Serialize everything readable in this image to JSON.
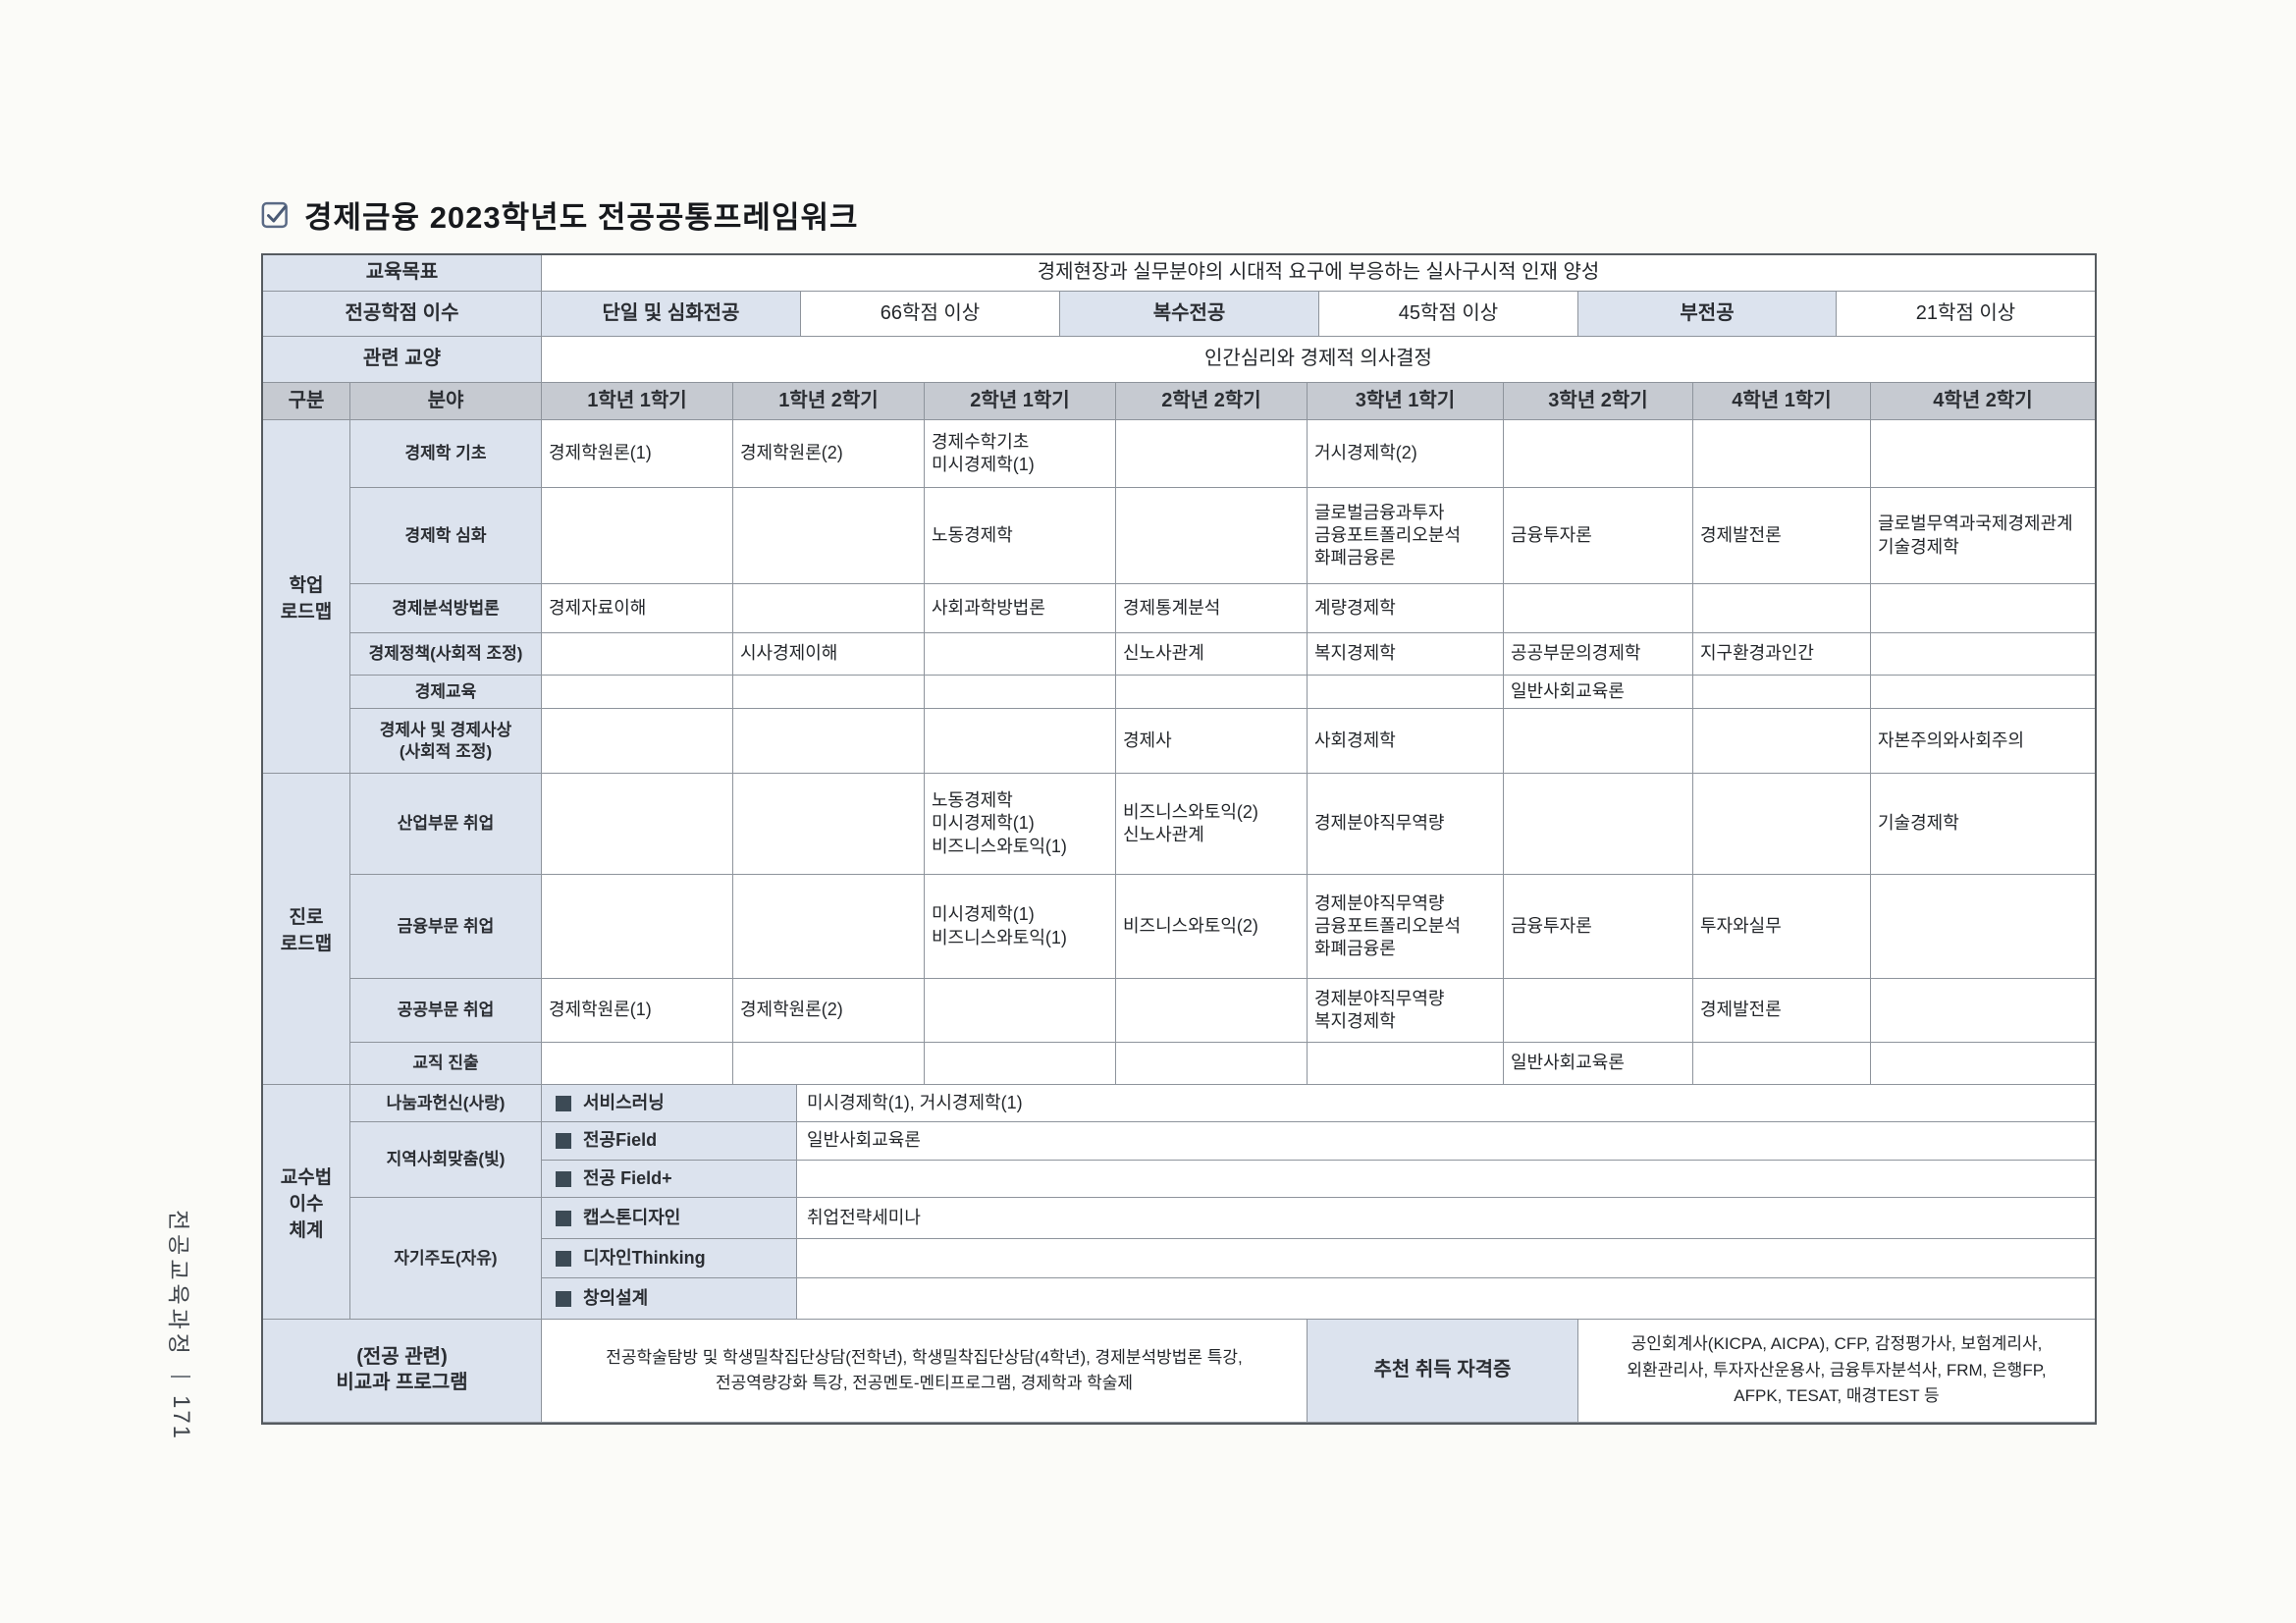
{
  "page": {
    "title": "경제금융 2023학년도 전공공통프레임워크",
    "title_icon": "checkbox-checked-icon",
    "side_label": "전공교육과정",
    "page_number": "171"
  },
  "colors": {
    "label_bg": "#dce3ee",
    "header_bg": "#c6cad1",
    "line": "#8e949c",
    "outer": "#565b60",
    "bullet_square": "#3c4a55"
  },
  "table": {
    "top_rows": {
      "goal_label": "교육목표",
      "goal_value": "경제현장과 실무분야의 시대적 요구에 부응하는 실사구시적 인재 양성",
      "credit_label": "전공학점 이수",
      "credit_cells": [
        {
          "label": "단일 및 심화전공",
          "value": "66학점 이상"
        },
        {
          "label": "복수전공",
          "value": "45학점 이상"
        },
        {
          "label": "부전공",
          "value": "21학점 이상"
        }
      ],
      "liberal_label": "관련 교양",
      "liberal_value": "인간심리와 경제적 의사결정"
    },
    "header": {
      "gubun": "구분",
      "bunya": "분야",
      "semesters": [
        "1학년 1학기",
        "1학년 2학기",
        "2학년 1학기",
        "2학년 2학기",
        "3학년 1학기",
        "3학년 2학기",
        "4학년 1학기",
        "4학년 2학기"
      ]
    },
    "sections": [
      {
        "name": "학업\n로드맵",
        "rows": [
          {
            "field": "경제학 기초",
            "cells": [
              "경제학원론(1)",
              "경제학원론(2)",
              "경제수학기초\n미시경제학(1)",
              "",
              "거시경제학(2)",
              "",
              "",
              ""
            ]
          },
          {
            "field": "경제학 심화",
            "cells": [
              "",
              "",
              "노동경제학",
              "",
              "글로벌금융과투자\n금융포트폴리오분석\n화폐금융론",
              "금융투자론",
              "경제발전론",
              "글로벌무역과국제경제관계\n기술경제학"
            ]
          },
          {
            "field": "경제분석방법론",
            "cells": [
              "경제자료이해",
              "",
              "사회과학방법론",
              "경제통계분석",
              "계량경제학",
              "",
              "",
              ""
            ]
          },
          {
            "field": "경제정책(사회적 조정)",
            "cells": [
              "",
              "시사경제이해",
              "",
              "신노사관계",
              "복지경제학",
              "공공부문의경제학",
              "지구환경과인간",
              ""
            ]
          },
          {
            "field": "경제교육",
            "cells": [
              "",
              "",
              "",
              "",
              "",
              "일반사회교육론",
              "",
              ""
            ]
          },
          {
            "field": "경제사 및 경제사상\n(사회적 조정)",
            "cells": [
              "",
              "",
              "",
              "경제사",
              "사회경제학",
              "",
              "",
              "자본주의와사회주의"
            ]
          }
        ]
      },
      {
        "name": "진로\n로드맵",
        "rows": [
          {
            "field": "산업부문 취업",
            "cells": [
              "",
              "",
              "노동경제학\n미시경제학(1)\n비즈니스와토익(1)",
              "비즈니스와토익(2)\n신노사관계",
              "경제분야직무역량",
              "",
              "",
              "기술경제학"
            ]
          },
          {
            "field": "금융부문 취업",
            "cells": [
              "",
              "",
              "미시경제학(1)\n비즈니스와토익(1)",
              "비즈니스와토익(2)",
              "경제분야직무역량\n금융포트폴리오분석\n화폐금융론",
              "금융투자론",
              "투자와실무",
              ""
            ]
          },
          {
            "field": "공공부문 취업",
            "cells": [
              "경제학원론(1)",
              "경제학원론(2)",
              "",
              "",
              "경제분야직무역량\n복지경제학",
              "",
              "경제발전론",
              ""
            ]
          },
          {
            "field": "교직 진출",
            "cells": [
              "",
              "",
              "",
              "",
              "",
              "일반사회교육론",
              "",
              ""
            ]
          }
        ]
      }
    ],
    "pedagogy": {
      "name": "교수법\n이수\n체계",
      "groups": [
        {
          "field": "나눔과헌신(사랑)",
          "items": [
            {
              "label": "서비스러닝",
              "value": "미시경제학(1), 거시경제학(1)"
            }
          ]
        },
        {
          "field": "지역사회맞춤(빛)",
          "items": [
            {
              "label": "전공Field",
              "value": "일반사회교육론"
            },
            {
              "label": "전공 Field+",
              "value": ""
            }
          ]
        },
        {
          "field": "자기주도(자유)",
          "items": [
            {
              "label": "캡스톤디자인",
              "value": "취업전략세미나"
            },
            {
              "label": "디자인Thinking",
              "value": ""
            },
            {
              "label": "창의설계",
              "value": ""
            }
          ]
        }
      ]
    },
    "bottom": {
      "program_label": "(전공 관련)\n비교과 프로그램",
      "program_value": "전공학술탐방 및 학생밀착집단상담(전학년), 학생밀착집단상담(4학년), 경제분석방법론 특강,\n전공역량강화 특강, 전공멘토-멘티프로그램, 경제학과 학술제",
      "cert_label": "추천 취득 자격증",
      "cert_value": "공인회계사(KICPA, AICPA), CFP, 감정평가사, 보험계리사,\n외환관리사, 투자자산운용사, 금융투자분석사, FRM, 은행FP,\nAFPK, TESAT, 매경TEST 등"
    }
  }
}
